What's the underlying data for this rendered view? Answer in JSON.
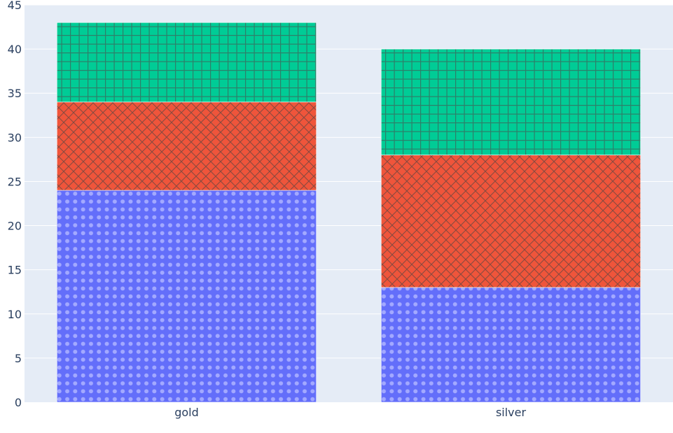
{
  "chart_data": {
    "type": "bar",
    "barmode": "stack",
    "categories": [
      "gold",
      "silver"
    ],
    "series": [
      {
        "values": [
          24,
          13
        ],
        "color": "#636efa",
        "pattern": "dots"
      },
      {
        "values": [
          10,
          15
        ],
        "color": "#ef553b",
        "pattern": "crosshatch"
      },
      {
        "values": [
          9,
          12
        ],
        "color": "#00cc96",
        "pattern": "grid"
      }
    ],
    "ylim": [
      0,
      45
    ],
    "yticks": [
      0,
      5,
      10,
      15,
      20,
      25,
      30,
      35,
      40,
      45
    ],
    "grid": true,
    "colors": {
      "plot_background": "#e5ecf6",
      "gridline": "#ffffff",
      "text": "#2a3f5f"
    }
  }
}
